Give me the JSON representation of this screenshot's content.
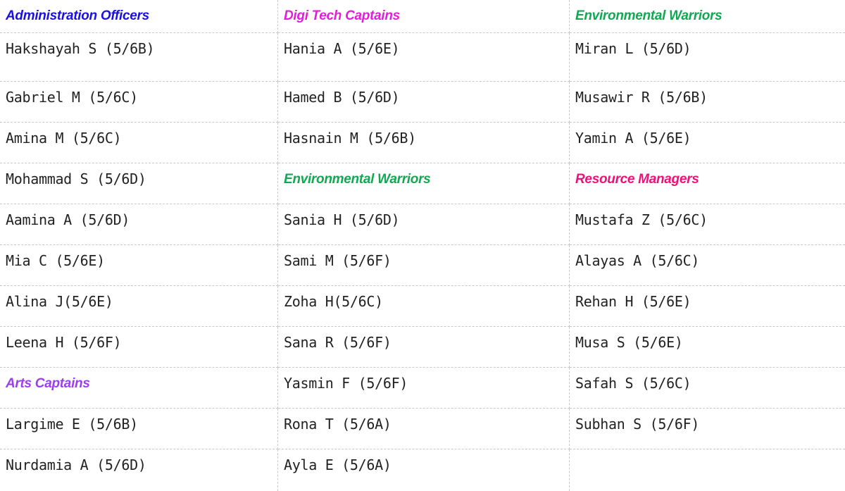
{
  "table": {
    "rows": [
      [
        {
          "text": "Administration Officers",
          "kind": "heading",
          "color": "#1a10e0"
        },
        {
          "text": "Digi Tech Captains",
          "kind": "heading",
          "color": "#e020d8"
        },
        {
          "text": "Environmental  Warriors",
          "kind": "heading",
          "color": "#10a850"
        }
      ],
      [
        {
          "text": "Hakshayah S (5/6B)",
          "kind": "name"
        },
        {
          "text": "Hania A (5/6E)",
          "kind": "name"
        },
        {
          "text": "Miran L (5/6D)",
          "kind": "name"
        }
      ],
      [
        {
          "text": "Gabriel M (5/6C)",
          "kind": "name"
        },
        {
          "text": "Hamed B (5/6D)",
          "kind": "name"
        },
        {
          "text": "Musawir R (5/6B)",
          "kind": "name"
        }
      ],
      [
        {
          "text": "Amina M (5/6C)",
          "kind": "name"
        },
        {
          "text": "Hasnain M (5/6B)",
          "kind": "name"
        },
        {
          "text": "Yamin A (5/6E)",
          "kind": "name"
        }
      ],
      [
        {
          "text": "Mohammad S (5/6D)",
          "kind": "name"
        },
        {
          "text": "Environmental Warriors",
          "kind": "heading",
          "color": "#10a850"
        },
        {
          "text": "Resource Managers",
          "kind": "heading",
          "color": "#f0107a"
        }
      ],
      [
        {
          "text": "Aamina A (5/6D)",
          "kind": "name"
        },
        {
          "text": "Sania H (5/6D)",
          "kind": "name"
        },
        {
          "text": "Mustafa Z (5/6C)",
          "kind": "name"
        }
      ],
      [
        {
          "text": "Mia C (5/6E)",
          "kind": "name"
        },
        {
          "text": "Sami M (5/6F)",
          "kind": "name"
        },
        {
          "text": "Alayas A (5/6C)",
          "kind": "name"
        }
      ],
      [
        {
          "text": "Alina J(5/6E)",
          "kind": "name"
        },
        {
          "text": "Zoha H(5/6C)",
          "kind": "name"
        },
        {
          "text": "Rehan H (5/6E)",
          "kind": "name"
        }
      ],
      [
        {
          "text": "Leena H (5/6F)",
          "kind": "name"
        },
        {
          "text": "Sana R (5/6F)",
          "kind": "name"
        },
        {
          "text": "Musa S (5/6E)",
          "kind": "name"
        }
      ],
      [
        {
          "text": "Arts Captains",
          "kind": "heading",
          "color": "#9d3df0"
        },
        {
          "text": "Yasmin F (5/6F)",
          "kind": "name"
        },
        {
          "text": "Safah S (5/6C)",
          "kind": "name"
        }
      ],
      [
        {
          "text": "Largime E (5/6B)",
          "kind": "name"
        },
        {
          "text": "Rona T (5/6A)",
          "kind": "name"
        },
        {
          "text": "Subhan S (5/6F)",
          "kind": "name"
        }
      ],
      [
        {
          "text": "Nurdamia A (5/6D)",
          "kind": "name"
        },
        {
          "text": "Ayla E (5/6A)",
          "kind": "name"
        },
        {
          "text": "",
          "kind": "name"
        }
      ]
    ]
  }
}
